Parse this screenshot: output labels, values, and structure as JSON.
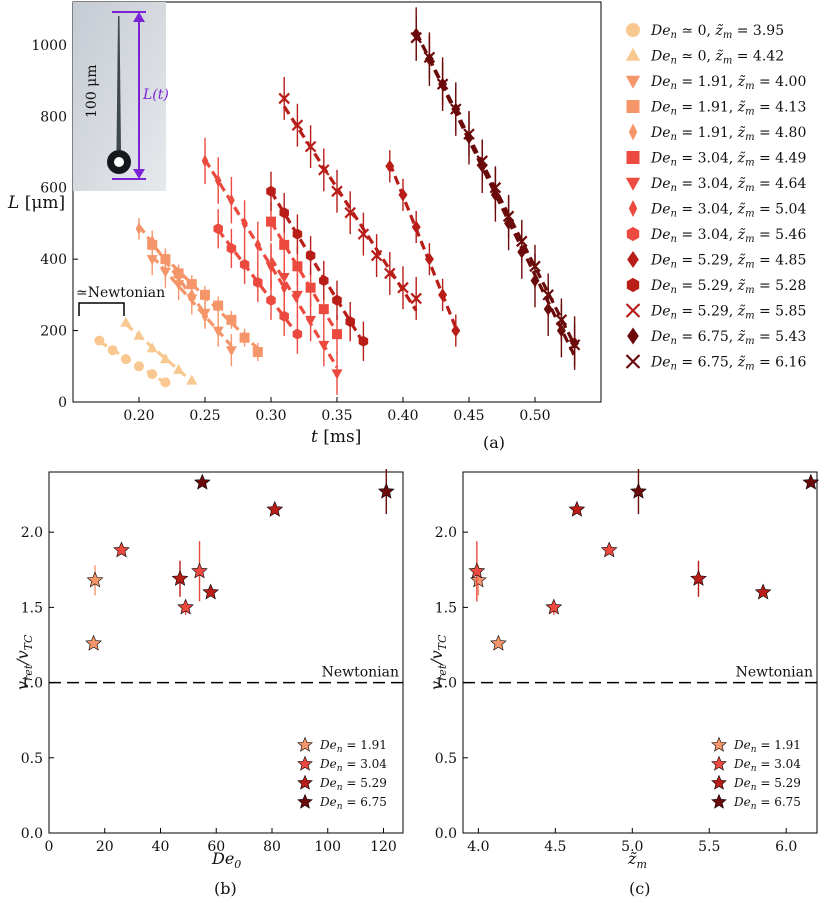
{
  "colors": {
    "c0": "#f9c890",
    "c191": "#f5956a",
    "c304": "#ec4a3f",
    "c529": "#b81d18",
    "c675": "#6b0a0a",
    "inset_arrow": "#7b22d3"
  },
  "chart_data": [
    {
      "id": "a",
      "type": "scatter",
      "panel_label": "(a)",
      "xlabel": "t [ms]",
      "ylabel": "L [μm]",
      "xlim": [
        0.15,
        0.55
      ],
      "ylim": [
        0,
        1120
      ],
      "xticks": [
        0.2,
        0.25,
        0.3,
        0.35,
        0.4,
        0.45,
        0.5
      ],
      "yticks": [
        0,
        200,
        400,
        600,
        800,
        1000
      ],
      "annotation": "≃Newtonian",
      "inset": {
        "scale_label": "100 μm",
        "length_label": "L(t)"
      },
      "series": [
        {
          "name": "De_n ≃ 0, z̃_m = 3.95",
          "De": "0",
          "zm": "3.95",
          "color": "c0",
          "marker": "circle",
          "err": 0,
          "x": [
            0.17,
            0.18,
            0.19,
            0.2,
            0.21,
            0.22
          ],
          "y": [
            172,
            145,
            120,
            100,
            78,
            55
          ]
        },
        {
          "name": "De_n ≃ 0, z̃_m = 4.42",
          "De": "0",
          "zm": "4.42",
          "color": "c0",
          "marker": "triangle-up",
          "err": 0,
          "x": [
            0.19,
            0.2,
            0.21,
            0.22,
            0.23,
            0.24
          ],
          "y": [
            222,
            185,
            150,
            120,
            90,
            60
          ]
        },
        {
          "name": "De_n = 1.91, z̃_m = 4.00",
          "De": "1.91",
          "zm": "4.00",
          "color": "c191",
          "marker": "triangle-down",
          "err": 45,
          "x": [
            0.21,
            0.22,
            0.23,
            0.24,
            0.25,
            0.26,
            0.27
          ],
          "y": [
            400,
            365,
            330,
            290,
            250,
            200,
            145
          ]
        },
        {
          "name": "De_n = 1.91, z̃_m = 4.13",
          "De": "1.91",
          "zm": "4.13",
          "color": "c191",
          "marker": "square",
          "err": 25,
          "x": [
            0.21,
            0.22,
            0.23,
            0.24,
            0.25,
            0.26,
            0.27,
            0.28,
            0.29
          ],
          "y": [
            440,
            400,
            360,
            330,
            300,
            270,
            230,
            180,
            140
          ]
        },
        {
          "name": "De_n = 1.91, z̃_m = 4.80",
          "De": "1.91",
          "zm": "4.80",
          "color": "c191",
          "marker": "diamond-thin",
          "err": 30,
          "x": [
            0.2,
            0.21,
            0.22,
            0.23,
            0.24,
            0.25
          ],
          "y": [
            485,
            450,
            400,
            350,
            300,
            240
          ]
        },
        {
          "name": "De_n = 3.04, z̃_m = 4.49",
          "De": "3.04",
          "zm": "4.49",
          "color": "c304",
          "marker": "square",
          "err": 55,
          "x": [
            0.3,
            0.31,
            0.32,
            0.33,
            0.34,
            0.35
          ],
          "y": [
            505,
            440,
            380,
            320,
            260,
            190
          ]
        },
        {
          "name": "De_n = 3.04, z̃_m = 4.64",
          "De": "3.04",
          "zm": "4.64",
          "color": "c304",
          "marker": "triangle-down",
          "err": 60,
          "x": [
            0.3,
            0.31,
            0.32,
            0.33,
            0.34,
            0.35
          ],
          "y": [
            380,
            350,
            300,
            230,
            160,
            80
          ]
        },
        {
          "name": "De_n = 3.04, z̃_m = 5.04",
          "De": "3.04",
          "zm": "5.04",
          "color": "c304",
          "marker": "diamond-thin",
          "err": 65,
          "x": [
            0.25,
            0.26,
            0.27,
            0.28,
            0.29,
            0.3,
            0.31
          ],
          "y": [
            675,
            620,
            565,
            500,
            440,
            380,
            320
          ]
        },
        {
          "name": "De_n = 3.04, z̃_m = 5.46",
          "De": "3.04",
          "zm": "5.46",
          "color": "c304",
          "marker": "hexagon",
          "err": 55,
          "x": [
            0.26,
            0.27,
            0.28,
            0.29,
            0.3,
            0.31,
            0.32
          ],
          "y": [
            485,
            430,
            385,
            335,
            285,
            240,
            190
          ]
        },
        {
          "name": "De_n = 5.29, z̃_m = 4.85",
          "De": "5.29",
          "zm": "4.85",
          "color": "c529",
          "marker": "diamond",
          "err": 45,
          "x": [
            0.39,
            0.4,
            0.41,
            0.42,
            0.43,
            0.44
          ],
          "y": [
            660,
            580,
            490,
            400,
            300,
            200
          ]
        },
        {
          "name": "De_n = 5.29, z̃_m = 5.28",
          "De": "5.29",
          "zm": "5.28",
          "color": "c529",
          "marker": "hexagon",
          "err": 55,
          "x": [
            0.3,
            0.31,
            0.32,
            0.33,
            0.34,
            0.35,
            0.36,
            0.37
          ],
          "y": [
            590,
            530,
            470,
            410,
            340,
            285,
            225,
            170
          ]
        },
        {
          "name": "De_n = 5.29, z̃_m = 5.85",
          "De": "5.29",
          "zm": "5.85",
          "color": "c529",
          "marker": "x",
          "err": 60,
          "x": [
            0.31,
            0.32,
            0.33,
            0.34,
            0.35,
            0.36,
            0.37,
            0.38,
            0.39,
            0.4,
            0.41
          ],
          "y": [
            850,
            775,
            715,
            650,
            590,
            530,
            470,
            410,
            360,
            320,
            290
          ]
        },
        {
          "name": "De_n = 6.75, z̃_m = 5.43",
          "De": "6.75",
          "zm": "5.43",
          "color": "c675",
          "marker": "diamond",
          "err": 75,
          "x": [
            0.41,
            0.42,
            0.43,
            0.44,
            0.45,
            0.46,
            0.47,
            0.48,
            0.49,
            0.5,
            0.51,
            0.52,
            0.53
          ],
          "y": [
            1030,
            960,
            890,
            820,
            740,
            660,
            580,
            500,
            420,
            340,
            260,
            200,
            165
          ]
        },
        {
          "name": "De_n = 6.75, z̃_m = 6.16",
          "De": "6.75",
          "zm": "6.16",
          "color": "c675",
          "marker": "x",
          "err": 60,
          "x": [
            0.41,
            0.42,
            0.43,
            0.44,
            0.45,
            0.46,
            0.47,
            0.48,
            0.49,
            0.5,
            0.51,
            0.52,
            0.53
          ],
          "y": [
            1020,
            965,
            890,
            820,
            750,
            675,
            600,
            520,
            450,
            380,
            300,
            230,
            160
          ]
        }
      ]
    },
    {
      "id": "b",
      "type": "scatter",
      "panel_label": "(b)",
      "xlabel": "De_0",
      "ylabel": "v_ret / v_TC",
      "xlim": [
        0,
        127
      ],
      "ylim": [
        0,
        2.4
      ],
      "xticks": [
        0,
        20,
        40,
        60,
        80,
        100,
        120
      ],
      "yticks": [
        0.0,
        0.5,
        1.0,
        1.5,
        2.0
      ],
      "reference_line": {
        "y": 1.0,
        "label": "Newtonian"
      },
      "legend": [
        {
          "label": "De_n = 1.91",
          "De": "1.91",
          "color": "c191"
        },
        {
          "label": "De_n = 3.04",
          "De": "3.04",
          "color": "c304"
        },
        {
          "label": "De_n = 5.29",
          "De": "5.29",
          "color": "c529"
        },
        {
          "label": "De_n = 6.75",
          "De": "6.75",
          "color": "c675"
        }
      ],
      "points": [
        {
          "x": 16,
          "y": 1.26,
          "err": 0,
          "color": "c191"
        },
        {
          "x": 16.5,
          "y": 1.68,
          "err": 0.1,
          "color": "c191"
        },
        {
          "x": 26,
          "y": 1.88,
          "err": 0,
          "color": "c304"
        },
        {
          "x": 49,
          "y": 1.5,
          "err": 0.05,
          "color": "c304"
        },
        {
          "x": 54,
          "y": 1.74,
          "err": 0.2,
          "color": "c304"
        },
        {
          "x": 47,
          "y": 1.69,
          "err": 0.12,
          "color": "c529"
        },
        {
          "x": 58,
          "y": 1.6,
          "err": 0,
          "color": "c529"
        },
        {
          "x": 81,
          "y": 2.15,
          "err": 0,
          "color": "c529"
        },
        {
          "x": 55,
          "y": 2.33,
          "err": 0,
          "color": "c675"
        },
        {
          "x": 121,
          "y": 2.27,
          "err": 0.15,
          "color": "c675"
        }
      ]
    },
    {
      "id": "c",
      "type": "scatter",
      "panel_label": "(c)",
      "xlabel": "z̃_m",
      "ylabel": "v_ret / v_TC",
      "xlim": [
        3.9,
        6.2
      ],
      "ylim": [
        0,
        2.4
      ],
      "xticks": [
        4.0,
        4.5,
        5.0,
        5.5,
        6.0
      ],
      "yticks": [
        0.0,
        0.5,
        1.0,
        1.5,
        2.0
      ],
      "reference_line": {
        "y": 1.0,
        "label": "Newtonian"
      },
      "legend": [
        {
          "label": "De_n = 1.91",
          "De": "1.91",
          "color": "c191"
        },
        {
          "label": "De_n = 3.04",
          "De": "3.04",
          "color": "c304"
        },
        {
          "label": "De_n = 5.29",
          "De": "5.29",
          "color": "c529"
        },
        {
          "label": "De_n = 6.75",
          "De": "6.75",
          "color": "c675"
        }
      ],
      "points": [
        {
          "x": 4.0,
          "y": 1.68,
          "err": 0.1,
          "color": "c191"
        },
        {
          "x": 4.13,
          "y": 1.26,
          "err": 0,
          "color": "c191"
        },
        {
          "x": 3.99,
          "y": 1.74,
          "err": 0.2,
          "color": "c304"
        },
        {
          "x": 4.49,
          "y": 1.5,
          "err": 0.05,
          "color": "c304"
        },
        {
          "x": 4.85,
          "y": 1.88,
          "err": 0,
          "color": "c304"
        },
        {
          "x": 4.64,
          "y": 2.15,
          "err": 0,
          "color": "c529"
        },
        {
          "x": 5.43,
          "y": 1.69,
          "err": 0.12,
          "color": "c529"
        },
        {
          "x": 5.85,
          "y": 1.6,
          "err": 0,
          "color": "c529"
        },
        {
          "x": 5.04,
          "y": 2.27,
          "err": 0.15,
          "color": "c675"
        },
        {
          "x": 6.16,
          "y": 2.33,
          "err": 0,
          "color": "c675"
        }
      ]
    }
  ]
}
